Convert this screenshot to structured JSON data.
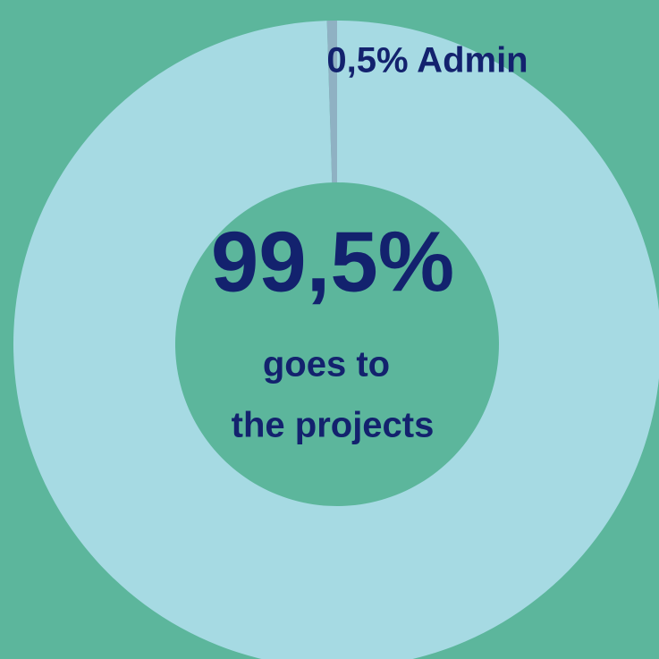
{
  "chart_data": {
    "type": "pie",
    "donut": true,
    "values": [
      99.5,
      0.5
    ],
    "value_labels": [
      "99,5%",
      "0,5% Admin"
    ],
    "colors": [
      "#a6dae3",
      "#8fb1c3"
    ],
    "annotations": [
      "goes to",
      "the projects"
    ]
  }
}
